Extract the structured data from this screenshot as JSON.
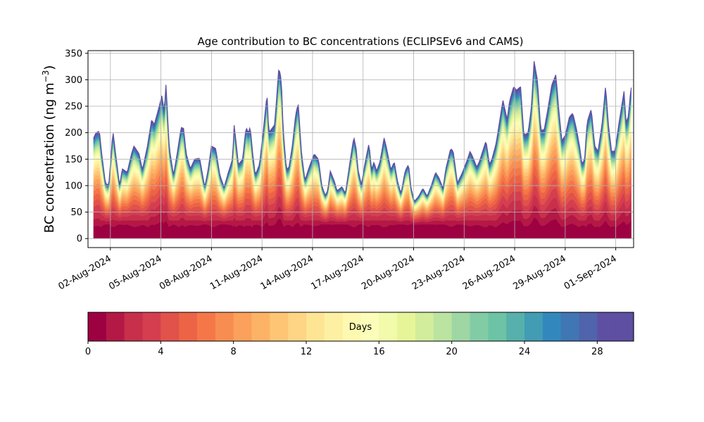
{
  "chart_data": {
    "type": "area",
    "title": "Age contribution to BC concentrations (ECLIPSEv6 and CAMS)",
    "ylabel": "BC concentration (ng m",
    "ylabel_exp": "−3",
    "ylabel_close": ")",
    "xlabel": "",
    "x_start": "2024-08-01T06:00",
    "x_end": "2024-09-01T00:00",
    "xlim_days": [
      -0.33,
      32.06
    ],
    "ylim": [
      -17,
      355
    ],
    "yticks": [
      0,
      50,
      100,
      150,
      200,
      250,
      300,
      350
    ],
    "xticks": [
      {
        "day": 1,
        "label": "02-Aug-2024"
      },
      {
        "day": 4,
        "label": "05-Aug-2024"
      },
      {
        "day": 7,
        "label": "08-Aug-2024"
      },
      {
        "day": 10,
        "label": "11-Aug-2024"
      },
      {
        "day": 13,
        "label": "14-Aug-2024"
      },
      {
        "day": 16,
        "label": "17-Aug-2024"
      },
      {
        "day": 19,
        "label": "20-Aug-2024"
      },
      {
        "day": 22,
        "label": "23-Aug-2024"
      },
      {
        "day": 25,
        "label": "26-Aug-2024"
      },
      {
        "day": 28,
        "label": "29-Aug-2024"
      },
      {
        "day": 31,
        "label": "01-Sep-2024"
      }
    ],
    "grid": true,
    "total_series": {
      "name": "total",
      "points": [
        [
          0.0,
          190
        ],
        [
          0.15,
          200
        ],
        [
          0.35,
          203
        ],
        [
          0.45,
          170
        ],
        [
          0.7,
          105
        ],
        [
          0.9,
          100
        ],
        [
          1.15,
          203
        ],
        [
          1.35,
          150
        ],
        [
          1.55,
          100
        ],
        [
          1.7,
          132
        ],
        [
          2.0,
          125
        ],
        [
          2.25,
          160
        ],
        [
          2.4,
          175
        ],
        [
          2.7,
          160
        ],
        [
          2.9,
          130
        ],
        [
          3.2,
          175
        ],
        [
          3.45,
          225
        ],
        [
          3.6,
          215
        ],
        [
          3.9,
          250
        ],
        [
          4.05,
          270
        ],
        [
          4.2,
          240
        ],
        [
          4.3,
          292
        ],
        [
          4.5,
          170
        ],
        [
          4.75,
          120
        ],
        [
          5.0,
          168
        ],
        [
          5.2,
          210
        ],
        [
          5.35,
          208
        ],
        [
          5.5,
          160
        ],
        [
          5.75,
          132
        ],
        [
          6.0,
          150
        ],
        [
          6.3,
          152
        ],
        [
          6.6,
          97
        ],
        [
          6.8,
          130
        ],
        [
          7.0,
          175
        ],
        [
          7.25,
          170
        ],
        [
          7.5,
          120
        ],
        [
          7.75,
          97
        ],
        [
          8.0,
          125
        ],
        [
          8.25,
          150
        ],
        [
          8.35,
          215
        ],
        [
          8.6,
          140
        ],
        [
          8.85,
          150
        ],
        [
          9.05,
          210
        ],
        [
          9.2,
          200
        ],
        [
          9.3,
          212
        ],
        [
          9.45,
          160
        ],
        [
          9.6,
          120
        ],
        [
          9.85,
          140
        ],
        [
          10.1,
          210
        ],
        [
          10.3,
          275
        ],
        [
          10.4,
          200
        ],
        [
          10.75,
          215
        ],
        [
          11.0,
          323
        ],
        [
          11.15,
          300
        ],
        [
          11.25,
          210
        ],
        [
          11.45,
          130
        ],
        [
          11.6,
          135
        ],
        [
          11.8,
          175
        ],
        [
          12.0,
          235
        ],
        [
          12.15,
          255
        ],
        [
          12.35,
          160
        ],
        [
          12.55,
          110
        ],
        [
          12.8,
          135
        ],
        [
          13.1,
          160
        ],
        [
          13.35,
          150
        ],
        [
          13.55,
          100
        ],
        [
          13.75,
          82
        ],
        [
          13.9,
          90
        ],
        [
          14.05,
          128
        ],
        [
          14.3,
          108
        ],
        [
          14.45,
          90
        ],
        [
          14.75,
          98
        ],
        [
          14.95,
          85
        ],
        [
          15.2,
          140
        ],
        [
          15.45,
          192
        ],
        [
          15.6,
          168
        ],
        [
          15.7,
          130
        ],
        [
          15.9,
          102
        ],
        [
          16.1,
          140
        ],
        [
          16.35,
          180
        ],
        [
          16.5,
          130
        ],
        [
          16.65,
          145
        ],
        [
          16.8,
          127
        ],
        [
          17.0,
          145
        ],
        [
          17.25,
          190
        ],
        [
          17.4,
          170
        ],
        [
          17.65,
          130
        ],
        [
          17.85,
          145
        ],
        [
          18.05,
          108
        ],
        [
          18.25,
          85
        ],
        [
          18.5,
          128
        ],
        [
          18.7,
          140
        ],
        [
          18.85,
          95
        ],
        [
          19.05,
          70
        ],
        [
          19.3,
          80
        ],
        [
          19.55,
          95
        ],
        [
          19.8,
          80
        ],
        [
          20.05,
          100
        ],
        [
          20.3,
          125
        ],
        [
          20.5,
          115
        ],
        [
          20.75,
          95
        ],
        [
          20.9,
          130
        ],
        [
          21.2,
          170
        ],
        [
          21.35,
          165
        ],
        [
          21.6,
          105
        ],
        [
          21.9,
          125
        ],
        [
          22.2,
          150
        ],
        [
          22.35,
          165
        ],
        [
          22.5,
          155
        ],
        [
          22.75,
          135
        ],
        [
          22.9,
          145
        ],
        [
          23.05,
          160
        ],
        [
          23.3,
          185
        ],
        [
          23.5,
          140
        ],
        [
          23.65,
          150
        ],
        [
          23.9,
          180
        ],
        [
          24.1,
          220
        ],
        [
          24.3,
          262
        ],
        [
          24.55,
          225
        ],
        [
          24.7,
          260
        ],
        [
          24.95,
          288
        ],
        [
          25.1,
          280
        ],
        [
          25.35,
          287
        ],
        [
          25.55,
          195
        ],
        [
          25.8,
          200
        ],
        [
          26.0,
          250
        ],
        [
          26.15,
          335
        ],
        [
          26.35,
          300
        ],
        [
          26.55,
          205
        ],
        [
          26.75,
          205
        ],
        [
          27.0,
          250
        ],
        [
          27.2,
          290
        ],
        [
          27.45,
          310
        ],
        [
          27.6,
          250
        ],
        [
          27.8,
          185
        ],
        [
          28.0,
          195
        ],
        [
          28.25,
          230
        ],
        [
          28.45,
          237
        ],
        [
          28.65,
          210
        ],
        [
          28.85,
          175
        ],
        [
          29.0,
          140
        ],
        [
          29.15,
          150
        ],
        [
          29.3,
          220
        ],
        [
          29.55,
          245
        ],
        [
          29.75,
          175
        ],
        [
          29.95,
          165
        ],
        [
          30.2,
          220
        ],
        [
          30.4,
          290
        ],
        [
          30.55,
          220
        ],
        [
          30.75,
          165
        ],
        [
          30.95,
          165
        ],
        [
          31.2,
          220
        ],
        [
          31.5,
          280
        ],
        [
          31.6,
          220
        ],
        [
          31.75,
          230
        ],
        [
          31.9,
          285
        ],
        [
          31.92,
          285
        ]
      ]
    },
    "colorbar": {
      "label": "Days",
      "ticks": [
        0,
        4,
        8,
        12,
        16,
        20,
        24,
        28
      ],
      "range": [
        0,
        30
      ],
      "colors": [
        "#9e0142",
        "#b41845",
        "#c72f4b",
        "#d53e4f",
        "#e1524a",
        "#ec6445",
        "#f57748",
        "#f88d52",
        "#fba15b",
        "#fdb365",
        "#fdc574",
        "#fdd585",
        "#fee593",
        "#fef0a2",
        "#fef8b0",
        "#fbfdb9",
        "#f2faab",
        "#e6f598",
        "#d2ed9c",
        "#bbe4a0",
        "#9ed7a4",
        "#82cca5",
        "#6cc3a5",
        "#57b0ab",
        "#429cb4",
        "#3288bd",
        "#4076b4",
        "#4f64ad",
        "#5e4fa2",
        "#5e4fa2"
      ]
    }
  }
}
